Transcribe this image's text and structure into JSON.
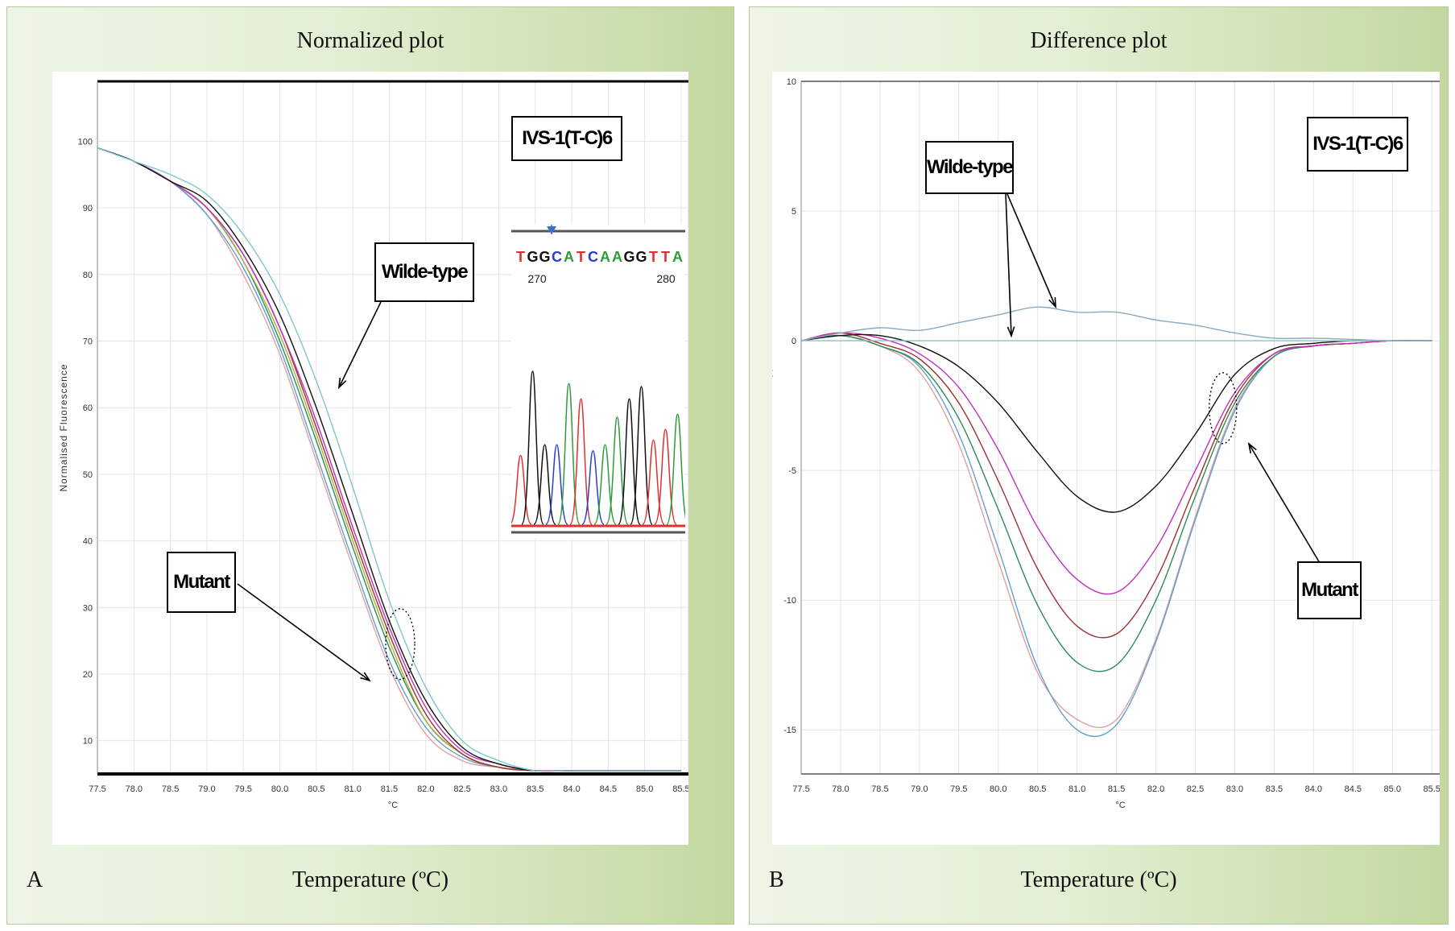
{
  "panels": {
    "a": {
      "title": "Normalized plot",
      "letter": "A",
      "x_title": "Temperature (ºC)"
    },
    "b": {
      "title": "Difference plot",
      "letter": "B",
      "x_title": "Temperature (ºC)"
    }
  },
  "annotations": {
    "a": {
      "mutation": "IVS-1(T-C)6",
      "wild": "Wilde-type",
      "mutant": "Mutant"
    },
    "b": {
      "mutation": "IVS-1(T-C)6",
      "wild": "Wilde-type",
      "mutant": "Mutant"
    }
  },
  "sequence": {
    "bases": [
      "T",
      "G",
      "G",
      "C",
      "A",
      "T",
      "C",
      "A",
      "A",
      "G",
      "G",
      "T",
      "T",
      "A"
    ],
    "positions": [
      "270",
      "280"
    ],
    "colors": {
      "A": "#2e9b3a",
      "C": "#2a3ad8",
      "G": "#111111",
      "T": "#e03030"
    }
  },
  "chart_data": [
    {
      "type": "line",
      "title": "Normalized plot",
      "xlabel": "°C",
      "ylabel": "Normalised Fluorescence",
      "xlim": [
        77.5,
        85.6
      ],
      "ylim": [
        5,
        109
      ],
      "xticks": [
        "77.5",
        "78.0",
        "78.5",
        "79.0",
        "79.5",
        "80.0",
        "80.5",
        "81.0",
        "81.5",
        "82.0",
        "82.5",
        "83.0",
        "83.5",
        "84.0",
        "84.5",
        "85.0",
        "85.5"
      ],
      "yticks": [
        "10",
        "20",
        "30",
        "40",
        "50",
        "60",
        "70",
        "80",
        "90",
        "100"
      ],
      "grid": true,
      "tm_values": [
        80.85,
        80.95,
        81.05,
        81.15,
        81.25,
        81.35,
        81.5,
        81.6
      ],
      "series_colors": [
        "#e0a0a0",
        "#5fa0d0",
        "#2e8b57",
        "#b0b03a",
        "#a03030",
        "#c030c0",
        "#111111",
        "#7fc8c8"
      ],
      "x": [
        77.5,
        78.0,
        78.5,
        79.0,
        79.5,
        80.0,
        80.5,
        81.0,
        81.5,
        82.0,
        82.5,
        83.0,
        83.5,
        84.0,
        84.5,
        85.0,
        85.5
      ],
      "series": [
        {
          "values": [
            99,
            97,
            94,
            89,
            80,
            68,
            52,
            36,
            21,
            11,
            7,
            6,
            5.5,
            5.5,
            5.5,
            5.5,
            5.5
          ]
        },
        {
          "values": [
            99,
            97,
            94,
            89,
            81,
            69,
            53,
            37,
            22,
            12,
            7.5,
            6,
            5.5,
            5.5,
            5.5,
            5.5,
            5.5
          ]
        },
        {
          "values": [
            99,
            97,
            94,
            90,
            82,
            70,
            55,
            39,
            24,
            13,
            8,
            6,
            5.5,
            5.5,
            5.5,
            5.5,
            5.5
          ]
        },
        {
          "values": [
            99,
            97,
            94,
            90,
            82,
            71,
            56,
            40,
            25,
            13,
            8,
            6,
            5.5,
            5.5,
            5.5,
            5.5,
            5.5
          ]
        },
        {
          "values": [
            99,
            97,
            94,
            90,
            83,
            72,
            57,
            41,
            26,
            14,
            8,
            6,
            5.5,
            5.5,
            5.5,
            5.5,
            5.5
          ]
        },
        {
          "values": [
            99,
            97,
            94,
            90,
            83,
            72,
            58,
            42,
            27,
            15,
            8.5,
            6.5,
            5.5,
            5.5,
            5.5,
            5.5,
            5.5
          ]
        },
        {
          "values": [
            99,
            97,
            94,
            91,
            84,
            74,
            60,
            44,
            28,
            16,
            9,
            6.5,
            5.5,
            5.5,
            5.5,
            5.5,
            5.5
          ]
        },
        {
          "values": [
            99,
            97,
            95,
            92,
            86,
            77,
            64,
            48,
            31,
            18,
            10,
            7,
            5.5,
            5.5,
            5.5,
            5.5,
            5.5
          ]
        }
      ]
    },
    {
      "type": "line",
      "title": "Difference plot",
      "xlabel": "°C",
      "ylabel": "Normalised minus Wildtype",
      "xlim": [
        77.5,
        85.6
      ],
      "ylim": [
        -16.7,
        10
      ],
      "xticks": [
        "77.5",
        "78.0",
        "78.5",
        "79.0",
        "79.5",
        "80.0",
        "80.5",
        "81.0",
        "81.5",
        "82.0",
        "82.5",
        "83.0",
        "83.5",
        "84.0",
        "84.5",
        "85.0",
        "85.5"
      ],
      "yticks": [
        "10",
        "5",
        "0",
        "-5",
        "-10",
        "-15"
      ],
      "grid": true,
      "series_colors": [
        "#e0a0a0",
        "#5fa0d0",
        "#2e8b57",
        "#a03030",
        "#c030c0",
        "#111111",
        "#8aa8c0",
        "#7fc8c8"
      ],
      "x": [
        77.5,
        78.0,
        78.5,
        79.0,
        79.5,
        80.0,
        80.5,
        81.0,
        81.5,
        82.0,
        82.5,
        83.0,
        83.5,
        84.0,
        84.5,
        85.0,
        85.5
      ],
      "series": [
        {
          "values": [
            0,
            0.2,
            -0.2,
            -1.2,
            -4.0,
            -8.5,
            -12.8,
            -14.6,
            -14.6,
            -11.5,
            -6.8,
            -2.6,
            -0.6,
            -0.2,
            -0.1,
            0,
            0
          ]
        },
        {
          "values": [
            0,
            0.2,
            -0.2,
            -1.0,
            -3.6,
            -8.0,
            -12.6,
            -15.0,
            -14.8,
            -11.6,
            -6.9,
            -2.7,
            -0.6,
            -0.2,
            -0.1,
            0,
            0
          ]
        },
        {
          "values": [
            0,
            0.2,
            -0.2,
            -0.9,
            -3.0,
            -6.5,
            -10.2,
            -12.4,
            -12.5,
            -10.0,
            -6.0,
            -2.4,
            -0.6,
            -0.2,
            -0.1,
            0,
            0
          ]
        },
        {
          "values": [
            0,
            0.3,
            -0.1,
            -0.7,
            -2.4,
            -5.4,
            -8.8,
            -11.0,
            -11.3,
            -9.2,
            -5.6,
            -2.2,
            -0.5,
            -0.2,
            -0.1,
            0,
            0
          ]
        },
        {
          "values": [
            0,
            0.3,
            0.1,
            -0.5,
            -1.8,
            -4.2,
            -7.2,
            -9.2,
            -9.7,
            -8.0,
            -5.0,
            -2.0,
            -0.5,
            -0.2,
            -0.1,
            0,
            0
          ]
        },
        {
          "values": [
            0,
            0.2,
            0.2,
            -0.2,
            -1.0,
            -2.4,
            -4.3,
            -6.0,
            -6.6,
            -5.6,
            -3.6,
            -1.3,
            -0.3,
            -0.1,
            0,
            0,
            0
          ]
        },
        {
          "values": [
            0,
            0.3,
            0.5,
            0.4,
            0.7,
            1.0,
            1.3,
            1.1,
            1.1,
            0.8,
            0.6,
            0.3,
            0.1,
            0.1,
            0.05,
            0,
            0
          ]
        },
        {
          "values": [
            0,
            0,
            0,
            0,
            0,
            0,
            0,
            0,
            0,
            0,
            0,
            0,
            0,
            0,
            0,
            0,
            0
          ]
        }
      ]
    }
  ]
}
